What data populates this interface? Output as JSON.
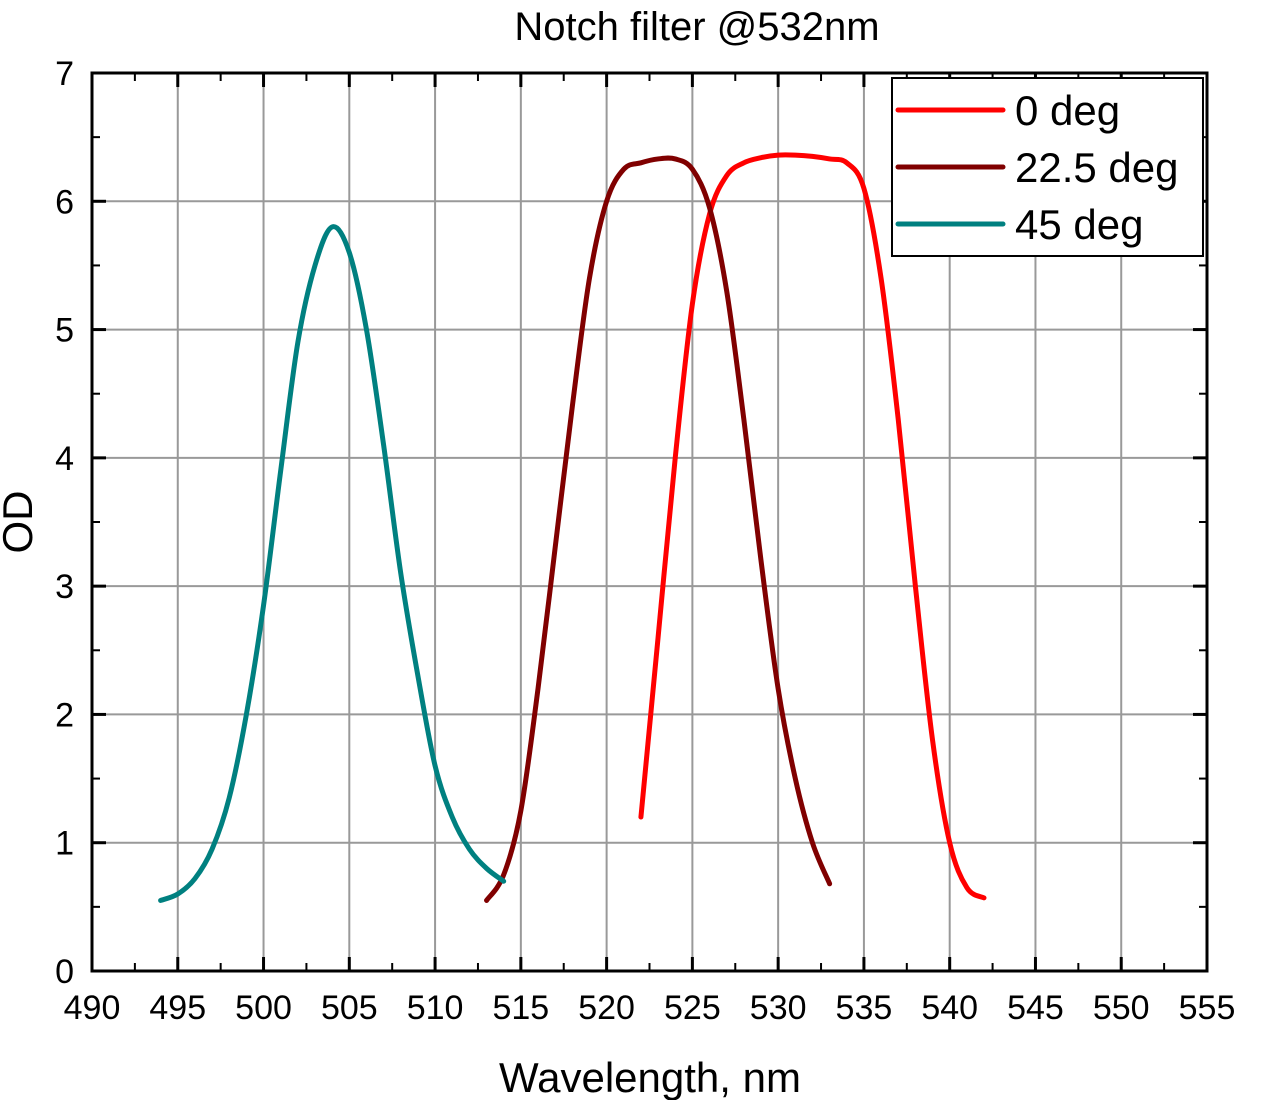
{
  "chart_data": {
    "type": "line",
    "title": "Notch filter @532nm",
    "xlabel": "Wavelength, nm",
    "ylabel": "OD",
    "xlim": [
      490,
      555
    ],
    "ylim": [
      0,
      7
    ],
    "xticks": [
      490,
      495,
      500,
      505,
      510,
      515,
      520,
      525,
      530,
      535,
      540,
      545,
      550,
      555
    ],
    "yticks": [
      0,
      1,
      2,
      3,
      4,
      5,
      6,
      7
    ],
    "grid": true,
    "legend_placement": "top-right",
    "series": [
      {
        "name": "0 deg",
        "color": "#ff0000",
        "x": [
          522,
          523,
          524,
          525,
          526,
          527,
          528,
          529,
          530,
          531,
          532,
          533,
          534,
          535,
          536,
          537,
          538,
          539,
          540,
          541,
          542
        ],
        "y": [
          1.2,
          2.6,
          4.0,
          5.2,
          5.9,
          6.2,
          6.3,
          6.34,
          6.36,
          6.36,
          6.35,
          6.33,
          6.3,
          6.1,
          5.4,
          4.3,
          3.0,
          1.8,
          1.0,
          0.65,
          0.57
        ]
      },
      {
        "name": "22.5 deg",
        "color": "#800000",
        "x": [
          513,
          514,
          515,
          516,
          517,
          518,
          519,
          520,
          521,
          522,
          523,
          524,
          525,
          526,
          527,
          528,
          529,
          530,
          531,
          532,
          533
        ],
        "y": [
          0.55,
          0.75,
          1.25,
          2.2,
          3.3,
          4.4,
          5.4,
          6.0,
          6.25,
          6.3,
          6.33,
          6.33,
          6.25,
          5.95,
          5.3,
          4.3,
          3.2,
          2.2,
          1.5,
          1.0,
          0.68
        ]
      },
      {
        "name": "45 deg",
        "color": "#008080",
        "x": [
          494,
          495,
          496,
          497,
          498,
          499,
          500,
          501,
          502,
          503,
          504,
          505,
          506,
          507,
          508,
          509,
          510,
          511,
          512,
          513,
          514
        ],
        "y": [
          0.55,
          0.6,
          0.72,
          0.95,
          1.35,
          2.0,
          2.85,
          3.9,
          4.9,
          5.5,
          5.8,
          5.6,
          5.0,
          4.1,
          3.1,
          2.3,
          1.6,
          1.2,
          0.95,
          0.8,
          0.7
        ]
      }
    ]
  }
}
